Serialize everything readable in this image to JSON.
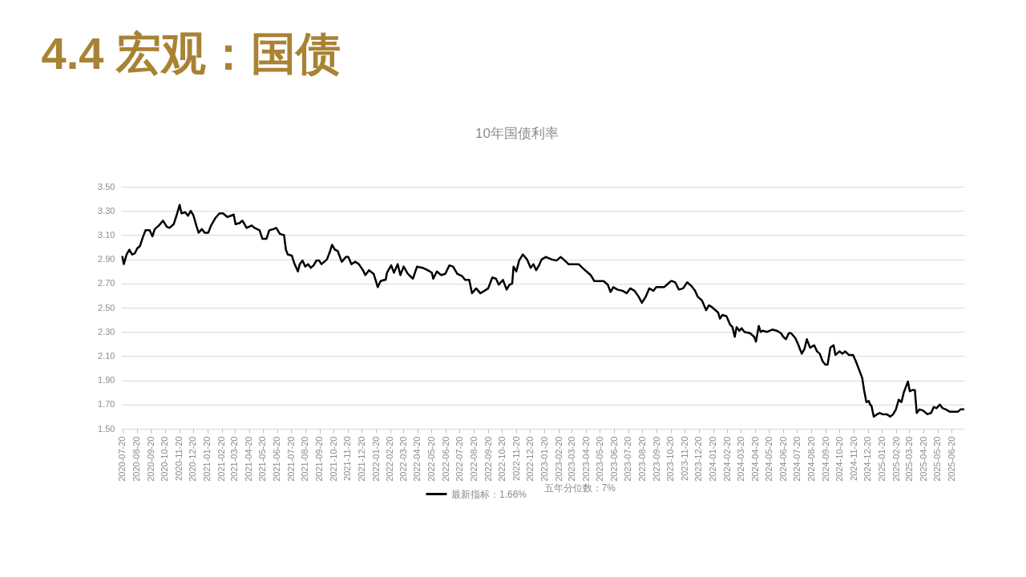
{
  "chart_data": {
    "type": "line",
    "title": "4.4 宏观：国债",
    "subtitle": "10年国债利率",
    "x": [
      "2020-07-20",
      "2020-07-23",
      "2020-07-29",
      "2020-08-04",
      "2020-08-10",
      "2020-08-16",
      "2020-08-21",
      "2020-08-27",
      "2020-09-02",
      "2020-09-08",
      "2020-09-17",
      "2020-09-23",
      "2020-09-28",
      "2020-10-07",
      "2020-10-16",
      "2020-10-24",
      "2020-10-30",
      "2020-11-08",
      "2020-11-14",
      "2020-11-21",
      "2020-11-25",
      "2020-12-03",
      "2020-12-09",
      "2020-12-15",
      "2020-12-21",
      "2020-12-27",
      "2021-01-01",
      "2021-01-08",
      "2021-01-14",
      "2021-01-22",
      "2021-01-28",
      "2021-02-06",
      "2021-02-15",
      "2021-02-23",
      "2021-03-04",
      "2021-03-12",
      "2021-03-18",
      "2021-03-22",
      "2021-03-31",
      "2021-04-06",
      "2021-04-15",
      "2021-04-26",
      "2021-05-02",
      "2021-05-13",
      "2021-05-19",
      "2021-05-28",
      "2021-06-03",
      "2021-06-12",
      "2021-06-18",
      "2021-06-26",
      "2021-07-05",
      "2021-07-09",
      "2021-07-13",
      "2021-07-22",
      "2021-07-27",
      "2021-08-04",
      "2021-08-08",
      "2021-08-14",
      "2021-08-20",
      "2021-08-26",
      "2021-09-01",
      "2021-09-07",
      "2021-09-13",
      "2021-09-19",
      "2021-09-24",
      "2021-10-06",
      "2021-10-12",
      "2021-10-17",
      "2021-10-23",
      "2021-10-29",
      "2021-11-07",
      "2021-11-16",
      "2021-11-21",
      "2021-11-28",
      "2021-12-06",
      "2021-12-14",
      "2021-12-23",
      "2021-12-28",
      "2022-01-05",
      "2022-01-15",
      "2022-01-24",
      "2022-01-30",
      "2022-02-07",
      "2022-02-10",
      "2022-02-13",
      "2022-02-22",
      "2022-02-28",
      "2022-03-08",
      "2022-03-14",
      "2022-03-21",
      "2022-03-30",
      "2022-04-10",
      "2022-04-19",
      "2022-05-01",
      "2022-05-12",
      "2022-05-21",
      "2022-05-24",
      "2022-06-01",
      "2022-06-10",
      "2022-06-19",
      "2022-06-28",
      "2022-07-06",
      "2022-07-15",
      "2022-07-26",
      "2022-08-01",
      "2022-08-10",
      "2022-08-16",
      "2022-08-25",
      "2022-09-03",
      "2022-09-12",
      "2022-09-20",
      "2022-09-29",
      "2022-10-07",
      "2022-10-13",
      "2022-10-22",
      "2022-10-30",
      "2022-11-05",
      "2022-11-11",
      "2022-11-14",
      "2022-11-20",
      "2022-11-26",
      "2022-12-04",
      "2022-12-13",
      "2022-12-21",
      "2022-12-27",
      "2023-01-02",
      "2023-01-08",
      "2023-01-14",
      "2023-01-23",
      "2023-02-04",
      "2023-02-15",
      "2023-02-24",
      "2023-03-05",
      "2023-03-13",
      "2023-03-23",
      "2023-04-04",
      "2023-04-12",
      "2023-04-21",
      "2023-04-30",
      "2023-05-08",
      "2023-05-17",
      "2023-05-28",
      "2023-06-06",
      "2023-06-12",
      "2023-06-18",
      "2023-06-27",
      "2023-07-08",
      "2023-07-17",
      "2023-07-25",
      "2023-08-03",
      "2023-08-12",
      "2023-08-19",
      "2023-08-27",
      "2023-09-04",
      "2023-09-13",
      "2023-09-19",
      "2023-09-28",
      "2023-10-06",
      "2023-10-12",
      "2023-10-21",
      "2023-10-24",
      "2023-10-30",
      "2023-11-07",
      "2023-11-16",
      "2023-11-25",
      "2023-12-04",
      "2023-12-12",
      "2023-12-18",
      "2023-12-27",
      "2024-01-05",
      "2024-01-11",
      "2024-01-16",
      "2024-01-25",
      "2024-01-31",
      "2024-02-04",
      "2024-02-09",
      "2024-02-18",
      "2024-02-26",
      "2024-03-02",
      "2024-03-07",
      "2024-03-11",
      "2024-03-17",
      "2024-03-22",
      "2024-03-28",
      "2024-04-09",
      "2024-04-18",
      "2024-04-22",
      "2024-04-28",
      "2024-05-02",
      "2024-05-07",
      "2024-05-16",
      "2024-05-28",
      "2024-06-06",
      "2024-06-15",
      "2024-06-20",
      "2024-06-26",
      "2024-07-02",
      "2024-07-07",
      "2024-07-16",
      "2024-07-22",
      "2024-07-30",
      "2024-08-05",
      "2024-08-10",
      "2024-08-17",
      "2024-08-26",
      "2024-09-01",
      "2024-09-07",
      "2024-09-13",
      "2024-09-19",
      "2024-09-24",
      "2024-09-30",
      "2024-10-07",
      "2024-10-11",
      "2024-10-20",
      "2024-10-26",
      "2024-11-01",
      "2024-11-09",
      "2024-11-18",
      "2024-11-24",
      "2024-11-30",
      "2024-12-08",
      "2024-12-12",
      "2024-12-17",
      "2024-12-22",
      "2024-12-25",
      "2024-12-28",
      "2025-01-02",
      "2025-01-09",
      "2025-01-15",
      "2025-01-21",
      "2025-01-30",
      "2025-02-07",
      "2025-02-13",
      "2025-02-19",
      "2025-02-25",
      "2025-03-03",
      "2025-03-08",
      "2025-03-13",
      "2025-03-17",
      "2025-03-21",
      "2025-03-27",
      "2025-04-01",
      "2025-04-05",
      "2025-04-11",
      "2025-04-19",
      "2025-04-28",
      "2025-05-06",
      "2025-05-12",
      "2025-05-18",
      "2025-05-25",
      "2025-05-31",
      "2025-06-07",
      "2025-06-16",
      "2025-06-25",
      "2025-07-03",
      "2025-07-09",
      "2025-07-16"
    ],
    "series": [
      {
        "name": "最新指标：1.66%",
        "color": "#000000",
        "values": [
          2.92,
          2.86,
          2.94,
          2.98,
          2.94,
          2.95,
          2.99,
          3.01,
          3.08,
          3.14,
          3.14,
          3.09,
          3.15,
          3.18,
          3.22,
          3.17,
          3.16,
          3.19,
          3.26,
          3.35,
          3.28,
          3.29,
          3.26,
          3.3,
          3.26,
          3.18,
          3.12,
          3.15,
          3.12,
          3.12,
          3.18,
          3.24,
          3.28,
          3.28,
          3.25,
          3.26,
          3.27,
          3.19,
          3.2,
          3.22,
          3.16,
          3.18,
          3.16,
          3.14,
          3.07,
          3.07,
          3.14,
          3.15,
          3.16,
          3.11,
          3.1,
          2.98,
          2.94,
          2.93,
          2.87,
          2.8,
          2.86,
          2.89,
          2.84,
          2.86,
          2.83,
          2.85,
          2.89,
          2.89,
          2.86,
          2.9,
          2.96,
          3.02,
          2.98,
          2.97,
          2.88,
          2.92,
          2.92,
          2.86,
          2.88,
          2.86,
          2.81,
          2.77,
          2.81,
          2.78,
          2.67,
          2.72,
          2.73,
          2.73,
          2.79,
          2.85,
          2.79,
          2.86,
          2.77,
          2.84,
          2.78,
          2.74,
          2.84,
          2.83,
          2.81,
          2.79,
          2.74,
          2.8,
          2.77,
          2.78,
          2.85,
          2.84,
          2.78,
          2.76,
          2.73,
          2.73,
          2.62,
          2.66,
          2.62,
          2.64,
          2.66,
          2.75,
          2.74,
          2.69,
          2.73,
          2.65,
          2.69,
          2.7,
          2.84,
          2.8,
          2.89,
          2.94,
          2.9,
          2.83,
          2.86,
          2.81,
          2.85,
          2.9,
          2.92,
          2.9,
          2.89,
          2.92,
          2.89,
          2.86,
          2.86,
          2.86,
          2.83,
          2.8,
          2.77,
          2.72,
          2.72,
          2.72,
          2.69,
          2.63,
          2.67,
          2.65,
          2.64,
          2.62,
          2.66,
          2.64,
          2.59,
          2.54,
          2.59,
          2.66,
          2.64,
          2.67,
          2.67,
          2.67,
          2.69,
          2.72,
          2.72,
          2.71,
          2.65,
          2.66,
          2.71,
          2.68,
          2.64,
          2.59,
          2.56,
          2.48,
          2.52,
          2.51,
          2.48,
          2.46,
          2.41,
          2.44,
          2.43,
          2.36,
          2.34,
          2.26,
          2.34,
          2.31,
          2.33,
          2.3,
          2.29,
          2.26,
          2.22,
          2.35,
          2.3,
          2.31,
          2.3,
          2.32,
          2.31,
          2.29,
          2.26,
          2.24,
          2.29,
          2.29,
          2.25,
          2.2,
          2.12,
          2.16,
          2.24,
          2.17,
          2.19,
          2.14,
          2.12,
          2.06,
          2.03,
          2.03,
          2.17,
          2.19,
          2.11,
          2.14,
          2.12,
          2.14,
          2.11,
          2.11,
          2.06,
          2.0,
          1.92,
          1.82,
          1.72,
          1.73,
          1.7,
          1.69,
          1.6,
          1.62,
          1.63,
          1.62,
          1.62,
          1.6,
          1.62,
          1.66,
          1.74,
          1.72,
          1.8,
          1.85,
          1.89,
          1.81,
          1.82,
          1.82,
          1.63,
          1.66,
          1.65,
          1.62,
          1.63,
          1.68,
          1.67,
          1.7,
          1.67,
          1.66,
          1.64,
          1.64,
          1.64,
          1.66,
          1.66
        ]
      }
    ],
    "xlim": [
      "2020-07-17",
      "2025-07-17"
    ],
    "xticks": [
      "2020-07-20",
      "2020-08-20",
      "2020-09-20",
      "2020-10-20",
      "2020-11-20",
      "2020-12-20",
      "2021-01-20",
      "2021-02-20",
      "2021-03-20",
      "2021-04-20",
      "2021-05-20",
      "2021-06-20",
      "2021-07-20",
      "2021-08-20",
      "2021-09-20",
      "2021-10-20",
      "2021-11-20",
      "2021-12-20",
      "2022-01-20",
      "2022-02-20",
      "2022-03-20",
      "2022-04-20",
      "2022-05-20",
      "2022-06-20",
      "2022-07-20",
      "2022-08-20",
      "2022-09-20",
      "2022-10-20",
      "2022-11-20",
      "2022-12-20",
      "2023-01-20",
      "2023-02-20",
      "2023-03-20",
      "2023-04-20",
      "2023-05-20",
      "2023-06-20",
      "2023-07-20",
      "2023-08-20",
      "2023-09-20",
      "2023-10-20",
      "2023-11-20",
      "2023-12-20",
      "2024-01-20",
      "2024-02-20",
      "2024-03-20",
      "2024-04-20",
      "2024-05-20",
      "2024-06-20",
      "2024-07-20",
      "2024-08-20",
      "2024-09-20",
      "2024-10-20",
      "2024-11-20",
      "2024-12-20",
      "2025-01-20",
      "2025-02-20",
      "2025-03-20",
      "2025-04-20",
      "2025-05-20",
      "2025-06-20"
    ],
    "ylim": [
      1.5,
      3.5
    ],
    "yticks": [
      {
        "value": 1.5,
        "label": "1.50"
      },
      {
        "value": 1.7,
        "label": "1.70"
      },
      {
        "value": 1.9,
        "label": "1.90"
      },
      {
        "value": 2.1,
        "label": "2.10"
      },
      {
        "value": 2.3,
        "label": "2.30"
      },
      {
        "value": 2.5,
        "label": "2.50"
      },
      {
        "value": 2.7,
        "label": "2.70"
      },
      {
        "value": 2.9,
        "label": "2.90"
      },
      {
        "value": 3.1,
        "label": "3.10"
      },
      {
        "value": 3.3,
        "label": "3.30"
      },
      {
        "value": 3.5,
        "label": "3.50"
      }
    ],
    "grid": "y",
    "legend": "bottom",
    "line_style": "solid",
    "annotations": [
      "五年分位数：7%"
    ]
  }
}
